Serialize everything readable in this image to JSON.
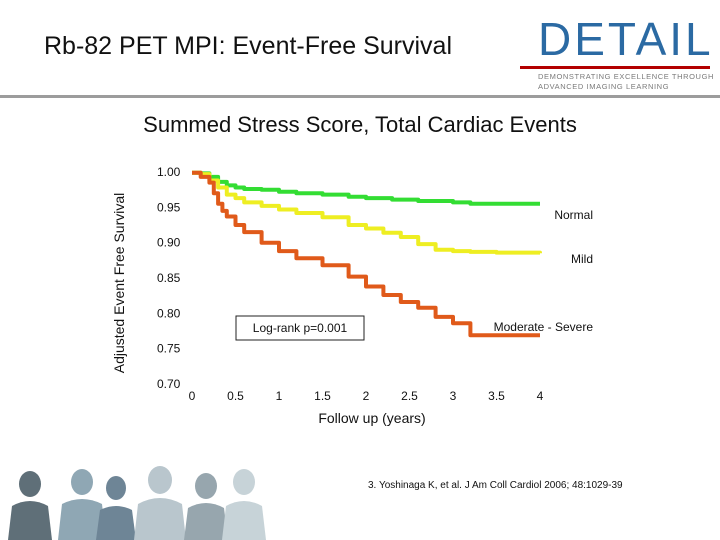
{
  "slide": {
    "title": "Rb-82 PET MPI: Event-Free Survival",
    "citation": "3. Yoshinaga K, et al. J Am Coll Cardiol 2006; 48:1029-39"
  },
  "logo": {
    "wordmark": "DETAIL",
    "tagline_1": "DEMONSTRATING EXCELLENCE THROUGH",
    "tagline_2": "ADVANCED IMAGING LEARNING",
    "color": "#2b6aa3"
  },
  "chart_data": {
    "type": "line",
    "title": "Summed Stress Score, Total Cardiac Events",
    "xlabel": "Follow up (years)",
    "ylabel": "Adjusted Event Free Survival",
    "xlim": [
      0,
      4
    ],
    "ylim": [
      0.7,
      1.0
    ],
    "x_ticks": [
      "0",
      "0.5",
      "1",
      "1.5",
      "2",
      "2.5",
      "3",
      "3.5",
      "4"
    ],
    "y_ticks": [
      "1.00",
      "0.95",
      "0.90",
      "0.85",
      "0.80",
      "0.75",
      "0.70"
    ],
    "grid": false,
    "annotation": "Log-rank p=0.001",
    "series": [
      {
        "name": "Normal",
        "color": "#33dd33",
        "x": [
          0,
          0.1,
          0.2,
          0.3,
          0.4,
          0.5,
          0.6,
          0.8,
          1.0,
          1.2,
          1.5,
          1.8,
          2.0,
          2.3,
          2.6,
          3.0,
          3.2,
          3.5,
          4.0
        ],
        "y": [
          0.999,
          0.998,
          0.993,
          0.986,
          0.981,
          0.978,
          0.976,
          0.975,
          0.972,
          0.97,
          0.968,
          0.965,
          0.963,
          0.961,
          0.959,
          0.957,
          0.955,
          0.955,
          0.955
        ]
      },
      {
        "name": "Mild",
        "color": "#eeee22",
        "x": [
          0,
          0.1,
          0.2,
          0.3,
          0.4,
          0.5,
          0.6,
          0.8,
          1.0,
          1.2,
          1.5,
          1.8,
          2.0,
          2.2,
          2.4,
          2.6,
          2.8,
          3.0,
          3.2,
          3.5,
          4.0
        ],
        "y": [
          0.999,
          0.997,
          0.988,
          0.978,
          0.968,
          0.963,
          0.957,
          0.952,
          0.947,
          0.942,
          0.936,
          0.925,
          0.92,
          0.914,
          0.908,
          0.898,
          0.89,
          0.888,
          0.887,
          0.886,
          0.885
        ]
      },
      {
        "name": "Moderate - Severe",
        "color": "#e05a1a",
        "x": [
          0,
          0.1,
          0.2,
          0.25,
          0.3,
          0.35,
          0.4,
          0.5,
          0.6,
          0.8,
          1.0,
          1.2,
          1.5,
          1.8,
          2.0,
          2.2,
          2.4,
          2.6,
          2.8,
          3.0,
          3.2,
          3.5,
          4.0
        ],
        "y": [
          0.999,
          0.993,
          0.985,
          0.97,
          0.955,
          0.945,
          0.937,
          0.925,
          0.915,
          0.9,
          0.888,
          0.878,
          0.868,
          0.852,
          0.838,
          0.826,
          0.816,
          0.808,
          0.795,
          0.786,
          0.769,
          0.769,
          0.769
        ]
      }
    ]
  }
}
